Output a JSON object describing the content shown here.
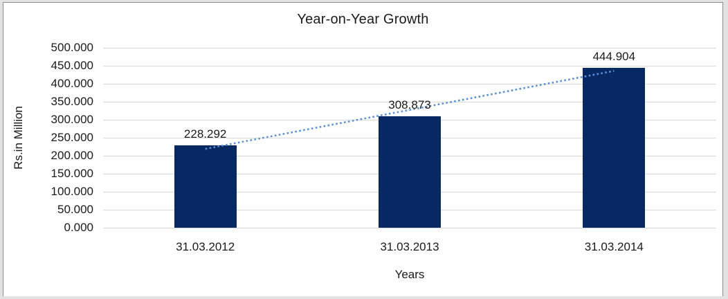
{
  "chart_data": {
    "type": "bar",
    "title": "Year-on-Year Growth",
    "xlabel": "Years",
    "ylabel": "Rs.in Million",
    "categories": [
      "31.03.2012",
      "31.03.2013",
      "31.03.2014"
    ],
    "values": [
      228.292,
      308.873,
      444.904
    ],
    "data_labels": [
      "228.292",
      "308.873",
      "444.904"
    ],
    "ylim": [
      0,
      500
    ],
    "ytick_step": 50,
    "ytick_labels": [
      "500.000",
      "450.000",
      "400.000",
      "350.000",
      "300.000",
      "250.000",
      "200.000",
      "150.000",
      "100.000",
      "50.000",
      "0.000"
    ],
    "grid": true,
    "legend_position": "none",
    "trendline": {
      "type": "linear",
      "style": "dotted"
    },
    "colors": {
      "bar": "#082863",
      "trendline": "#5B8FD6",
      "gridline": "#D9D9D9",
      "text": "#1A1A1A",
      "plot_bg": "#FFFFFF",
      "frame_bg": "#E2E2E2",
      "frame_border": "#8A8A8A"
    }
  }
}
